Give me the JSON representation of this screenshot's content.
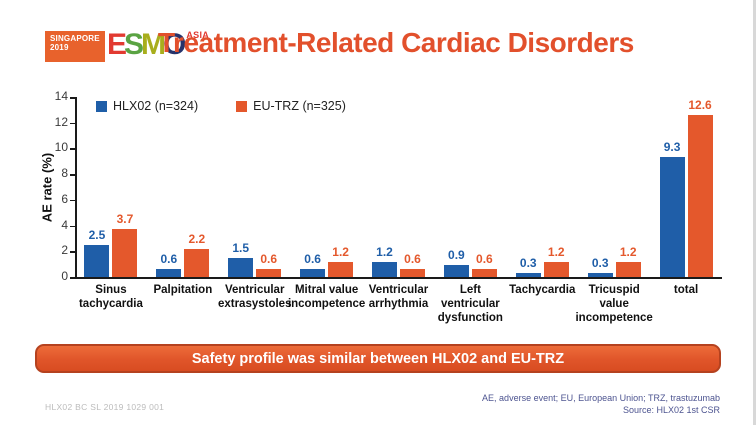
{
  "slide": {
    "logo": {
      "venue": "SINGAPORE",
      "year": "2019",
      "letters": [
        "E",
        "S",
        "M",
        "O"
      ],
      "region": "ASIA"
    },
    "title": "Treatment-Related Cardiac Disorders",
    "banner": "Safety profile was similar between HLX02 and EU-TRZ",
    "footer_left": "HLX02 BC SL 2019 1029 001",
    "footnote_line1": "AE, adverse event; EU, European Union; TRZ, trastuzumab",
    "footnote_line2": "Source: HLX02 1st CSR"
  },
  "colors": {
    "title": "#e2502c",
    "hlx02_blue": "#1f5ea8",
    "eutrz_orange": "#e4582c",
    "banner_background": "#e0552a",
    "banner_border": "#b5421f",
    "footnote_blue": "#4d5490",
    "footer_gray": "#bcbcbc"
  },
  "chart_data": {
    "type": "bar",
    "title": "",
    "xlabel": "",
    "ylabel": "AE rate (%)",
    "ylim": [
      0,
      14
    ],
    "ytick_step": 2,
    "grid": false,
    "legend_position": "top-left",
    "categories": [
      "Sinus\ntachycardia",
      "Palpitation",
      "Ventricular\nextrasystoles",
      "Mitral value\nincompetence",
      "Ventricular\narrhythmia",
      "Left\nventricular\ndysfunction",
      "Tachycardia",
      "Tricuspid\nvalue\nincompetence",
      "total"
    ],
    "series": [
      {
        "name": "HLX02 (n=324)",
        "color": "#1f5ea8",
        "values": [
          2.5,
          0.6,
          1.5,
          0.6,
          1.2,
          0.9,
          0.3,
          0.3,
          9.3
        ]
      },
      {
        "name": "EU-TRZ (n=325)",
        "color": "#e4582c",
        "values": [
          3.7,
          2.2,
          0.6,
          1.2,
          0.6,
          0.6,
          1.2,
          1.2,
          12.6
        ]
      }
    ]
  }
}
